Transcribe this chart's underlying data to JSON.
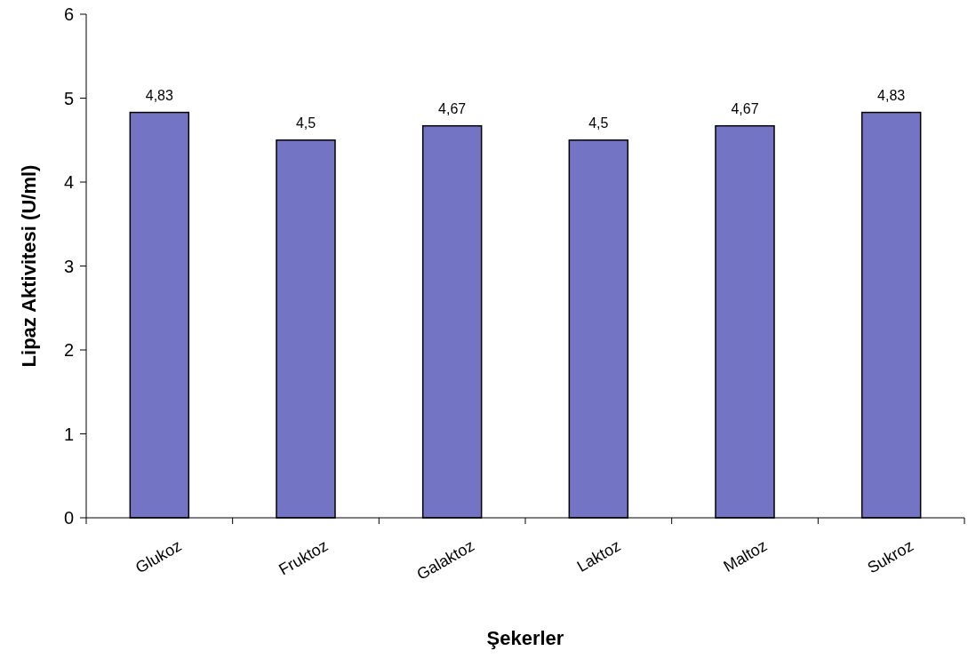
{
  "chart_data": {
    "type": "bar",
    "xlabel": "Şekerler",
    "ylabel": "Lipaz Aktivitesi (U/ml)",
    "categories": [
      "Glukoz",
      "Fruktoz",
      "Galaktoz",
      "Laktoz",
      "Maltoz",
      "Sukroz"
    ],
    "values": [
      4.83,
      4.5,
      4.67,
      4.5,
      4.67,
      4.83
    ],
    "value_labels": [
      "4,83",
      "4,5",
      "4,67",
      "4,5",
      "4,67",
      "4,83"
    ],
    "color": "#7474c4",
    "ylim": [
      0,
      6
    ],
    "yticks": [
      0,
      1,
      2,
      3,
      4,
      5,
      6
    ],
    "grid": false
  }
}
